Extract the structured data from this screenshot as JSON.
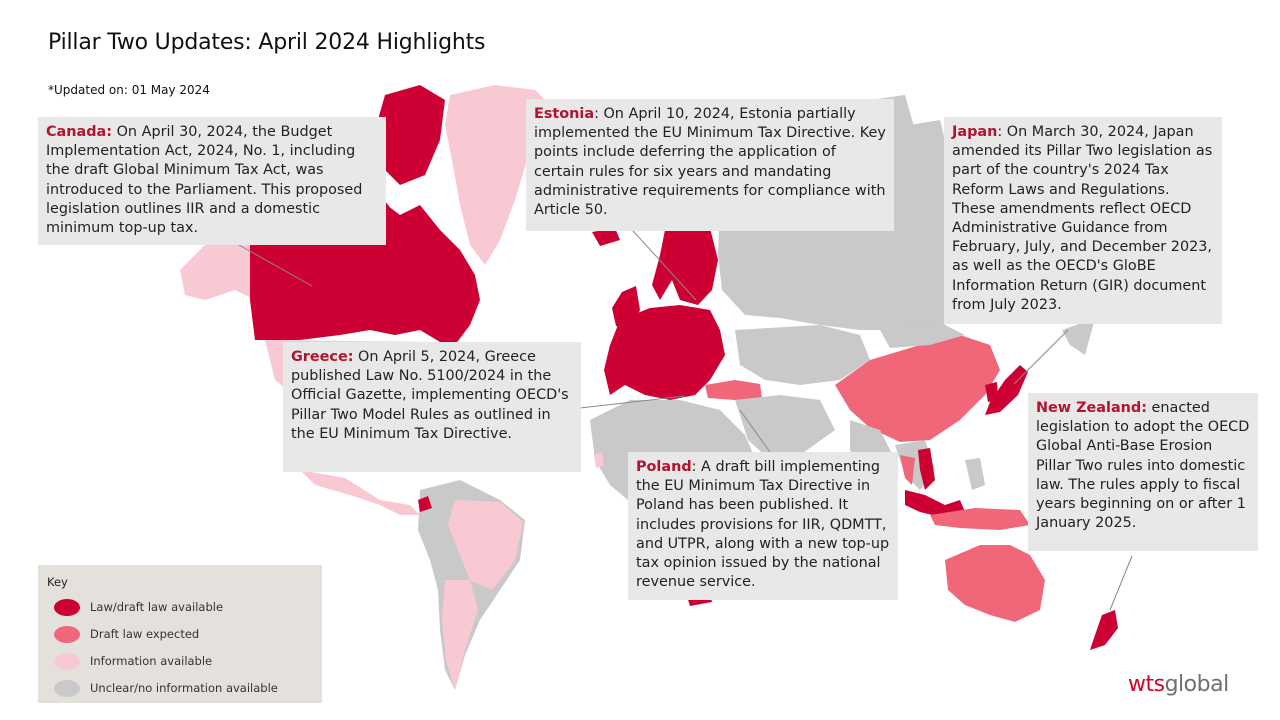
{
  "title": "Pillar Two Updates: April 2024 Highlights",
  "updated": "*Updated on: 01 May 2024",
  "colors": {
    "law_draft_available": "#cc0033",
    "draft_expected": "#f0677a",
    "information_available": "#f8c9d2",
    "unclear": "#c9c9c9",
    "callout_bg": "#e8e8e8",
    "country_name": "#b3142d"
  },
  "callouts": {
    "canada": {
      "country": "Canada:",
      "text": " On April 30, 2024, the Budget Implementation Act, 2024, No. 1, including the draft Global Minimum Tax Act, was introduced to the Parliament. This proposed legislation outlines IIR and a domestic minimum top-up tax."
    },
    "estonia": {
      "country": "Estonia",
      "text": ": On April 10, 2024, Estonia partially implemented the EU Minimum Tax Directive. Key points include deferring the application of certain rules for six years and mandating administrative requirements for compliance with Article 50."
    },
    "japan": {
      "country": "Japan",
      "text": ": On March 30, 2024, Japan amended its Pillar Two legislation as part of the country's 2024 Tax Reform Laws and Regulations. These amendments reflect OECD Administrative Guidance from February, July, and December 2023, as well as the OECD's GloBE Information Return (GIR) document from July 2023."
    },
    "greece": {
      "country": "Greece:",
      "text": " On April 5, 2024, Greece published Law No. 5100/2024 in the Official Gazette, implementing OECD's Pillar Two Model Rules as outlined in the EU Minimum Tax Directive."
    },
    "poland": {
      "country": "Poland",
      "text": ": A draft bill implementing the EU Minimum Tax Directive in Poland has been published. It includes provisions for IIR, QDMTT, and UTPR, along with a new top-up tax opinion issued by the national revenue service."
    },
    "new_zealand": {
      "country": "New Zealand:",
      "text": " enacted legislation to adopt the OECD Global Anti-Base Erosion Pillar Two rules into domestic law. The rules apply to fiscal years beginning on or after 1 January 2025."
    }
  },
  "legend": {
    "title": "Key",
    "items": [
      {
        "label": "Law/draft law available",
        "color": "#cc0033"
      },
      {
        "label": "Draft law expected",
        "color": "#f0677a"
      },
      {
        "label": "Information available",
        "color": "#f8c9d2"
      },
      {
        "label": "Unclear/no information available",
        "color": "#c9c9c9"
      }
    ]
  },
  "logo": {
    "part1": "wts",
    "part2": "global"
  }
}
